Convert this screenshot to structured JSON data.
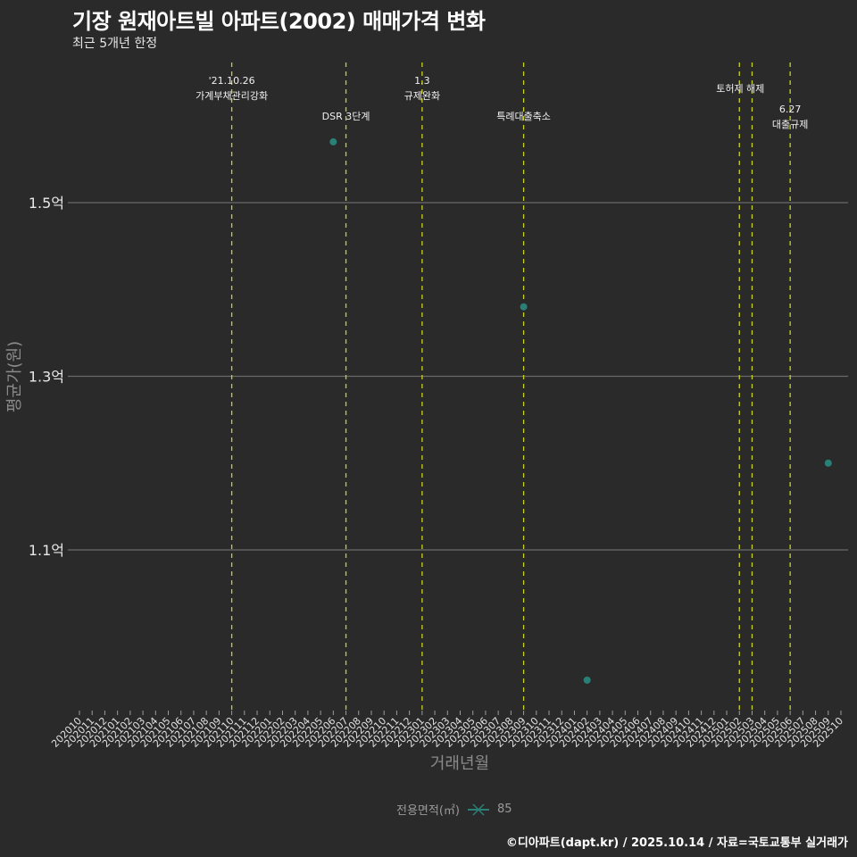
{
  "header": {
    "title": "기장 원재아트빌 아파트(2002) 매매가격 변화",
    "subtitle": "최근 5개년 한정"
  },
  "axes": {
    "xlabel": "거래년월",
    "ylabel": "평균가(원)",
    "yticks": [
      {
        "label": "1.5억",
        "value": 1.5
      },
      {
        "label": "1.3억",
        "value": 1.3
      },
      {
        "label": "1.1억",
        "value": 1.1
      }
    ]
  },
  "legend": {
    "title": "전용면적(㎡)",
    "items": [
      {
        "label": "85",
        "color": "#2a7f77"
      }
    ]
  },
  "caption": "©디아파트(dapt.kr) / 2025.10.14 / 자료=국토교통부 실거래가",
  "colors": {
    "background": "#2b2a2b",
    "grid": "#6a6a6a",
    "event_line": "#c8d21e",
    "point": "#2a7f77"
  },
  "chart_data": {
    "type": "scatter",
    "title": "기장 원재아트빌 아파트(2002) 매매가격 변화",
    "subtitle": "최근 5개년 한정",
    "xlabel": "거래년월",
    "ylabel": "평균가(원)",
    "x_categories": [
      "202010",
      "202011",
      "202012",
      "202101",
      "202102",
      "202103",
      "202104",
      "202105",
      "202106",
      "202107",
      "202108",
      "202109",
      "202110",
      "202111",
      "202112",
      "202201",
      "202202",
      "202203",
      "202204",
      "202205",
      "202206",
      "202207",
      "202208",
      "202209",
      "202210",
      "202211",
      "202212",
      "202301",
      "202302",
      "202303",
      "202304",
      "202305",
      "202306",
      "202307",
      "202308",
      "202309",
      "202310",
      "202311",
      "202312",
      "202401",
      "202402",
      "202403",
      "202404",
      "202405",
      "202406",
      "202407",
      "202408",
      "202409",
      "202410",
      "202411",
      "202412",
      "202501",
      "202502",
      "202503",
      "202504",
      "202505",
      "202506",
      "202507",
      "202508",
      "202509",
      "202510"
    ],
    "ylim": [
      0.92,
      1.64
    ],
    "yunit": "억",
    "grid": true,
    "legend_position": "bottom",
    "series": [
      {
        "name": "85",
        "points": [
          {
            "x": "202206",
            "y": 1.57
          },
          {
            "x": "202309",
            "y": 1.38
          },
          {
            "x": "202402",
            "y": 0.95
          },
          {
            "x": "202509",
            "y": 1.2
          }
        ]
      }
    ],
    "annotations": [
      {
        "x": "202110",
        "label_lines": [
          "'21.10.26",
          "가계부채관리강화"
        ]
      },
      {
        "x": "202207",
        "label_lines": [
          "DSR 3단계"
        ]
      },
      {
        "x": "202301",
        "label_lines": [
          "1.3",
          "규제완화"
        ]
      },
      {
        "x": "202309",
        "label_lines": [
          "특례대출축소"
        ]
      },
      {
        "x": "202502",
        "label_lines": [
          "토허제 해제"
        ]
      },
      {
        "x": "202503",
        "label_lines": []
      },
      {
        "x": "202506",
        "label_lines": [
          "6.27",
          "대출규제"
        ]
      }
    ]
  }
}
